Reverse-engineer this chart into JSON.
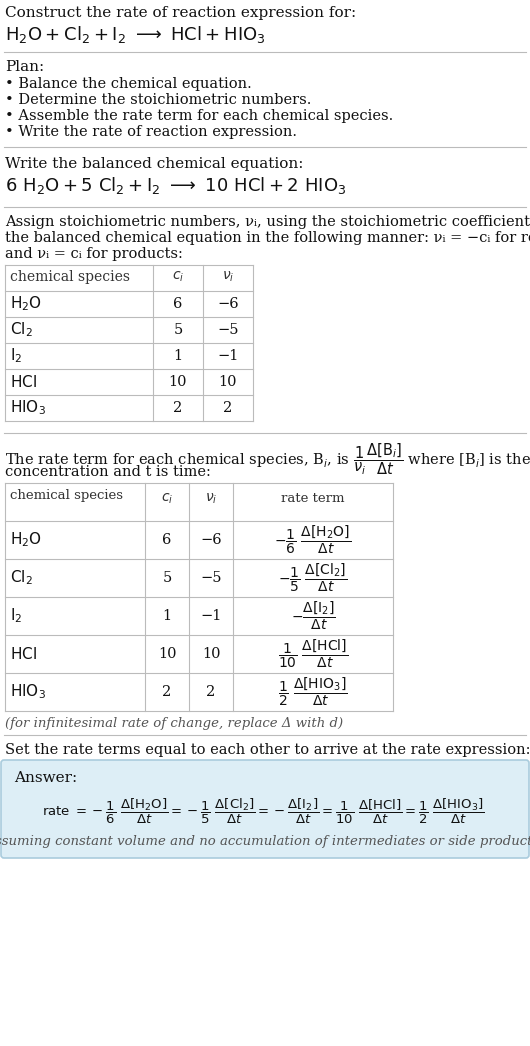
{
  "bg_color": "#ffffff",
  "text_color": "#111111",
  "gray_text": "#555555",
  "answer_bg": "#ddeef6",
  "answer_border": "#aaccdd",
  "title_line1": "Construct the rate of reaction expression for:",
  "plan_header": "Plan:",
  "plan_items": [
    "• Balance the chemical equation.",
    "• Determine the stoichiometric numbers.",
    "• Assemble the rate term for each chemical species.",
    "• Write the rate of reaction expression."
  ],
  "balanced_header": "Write the balanced chemical equation:",
  "stoich_intro_line1": "Assign stoichiometric numbers, νᵢ, using the stoichiometric coefficients, cᵢ, from",
  "stoich_intro_line2": "the balanced chemical equation in the following manner: νᵢ = −cᵢ for reactants",
  "stoich_intro_line3": "and νᵢ = cᵢ for products:",
  "table1_data": [
    [
      "H₂O",
      "6",
      "−6"
    ],
    [
      "Cl₂",
      "5",
      "−5"
    ],
    [
      "I₂",
      "1",
      "−1"
    ],
    [
      "HCl",
      "10",
      "10"
    ],
    [
      "HIO₃",
      "2",
      "2"
    ]
  ],
  "rate_intro_line1": "The rate term for each chemical species, Bᵢ, is",
  "rate_intro_line2": "concentration and t is time:",
  "infinitesimal_note": "(for infinitesimal rate of change, replace Δ with d)",
  "final_header": "Set the rate terms equal to each other to arrive at the rate expression:",
  "answer_label": "Answer:",
  "answer_note": "(assuming constant volume and no accumulation of intermediates or side products)"
}
